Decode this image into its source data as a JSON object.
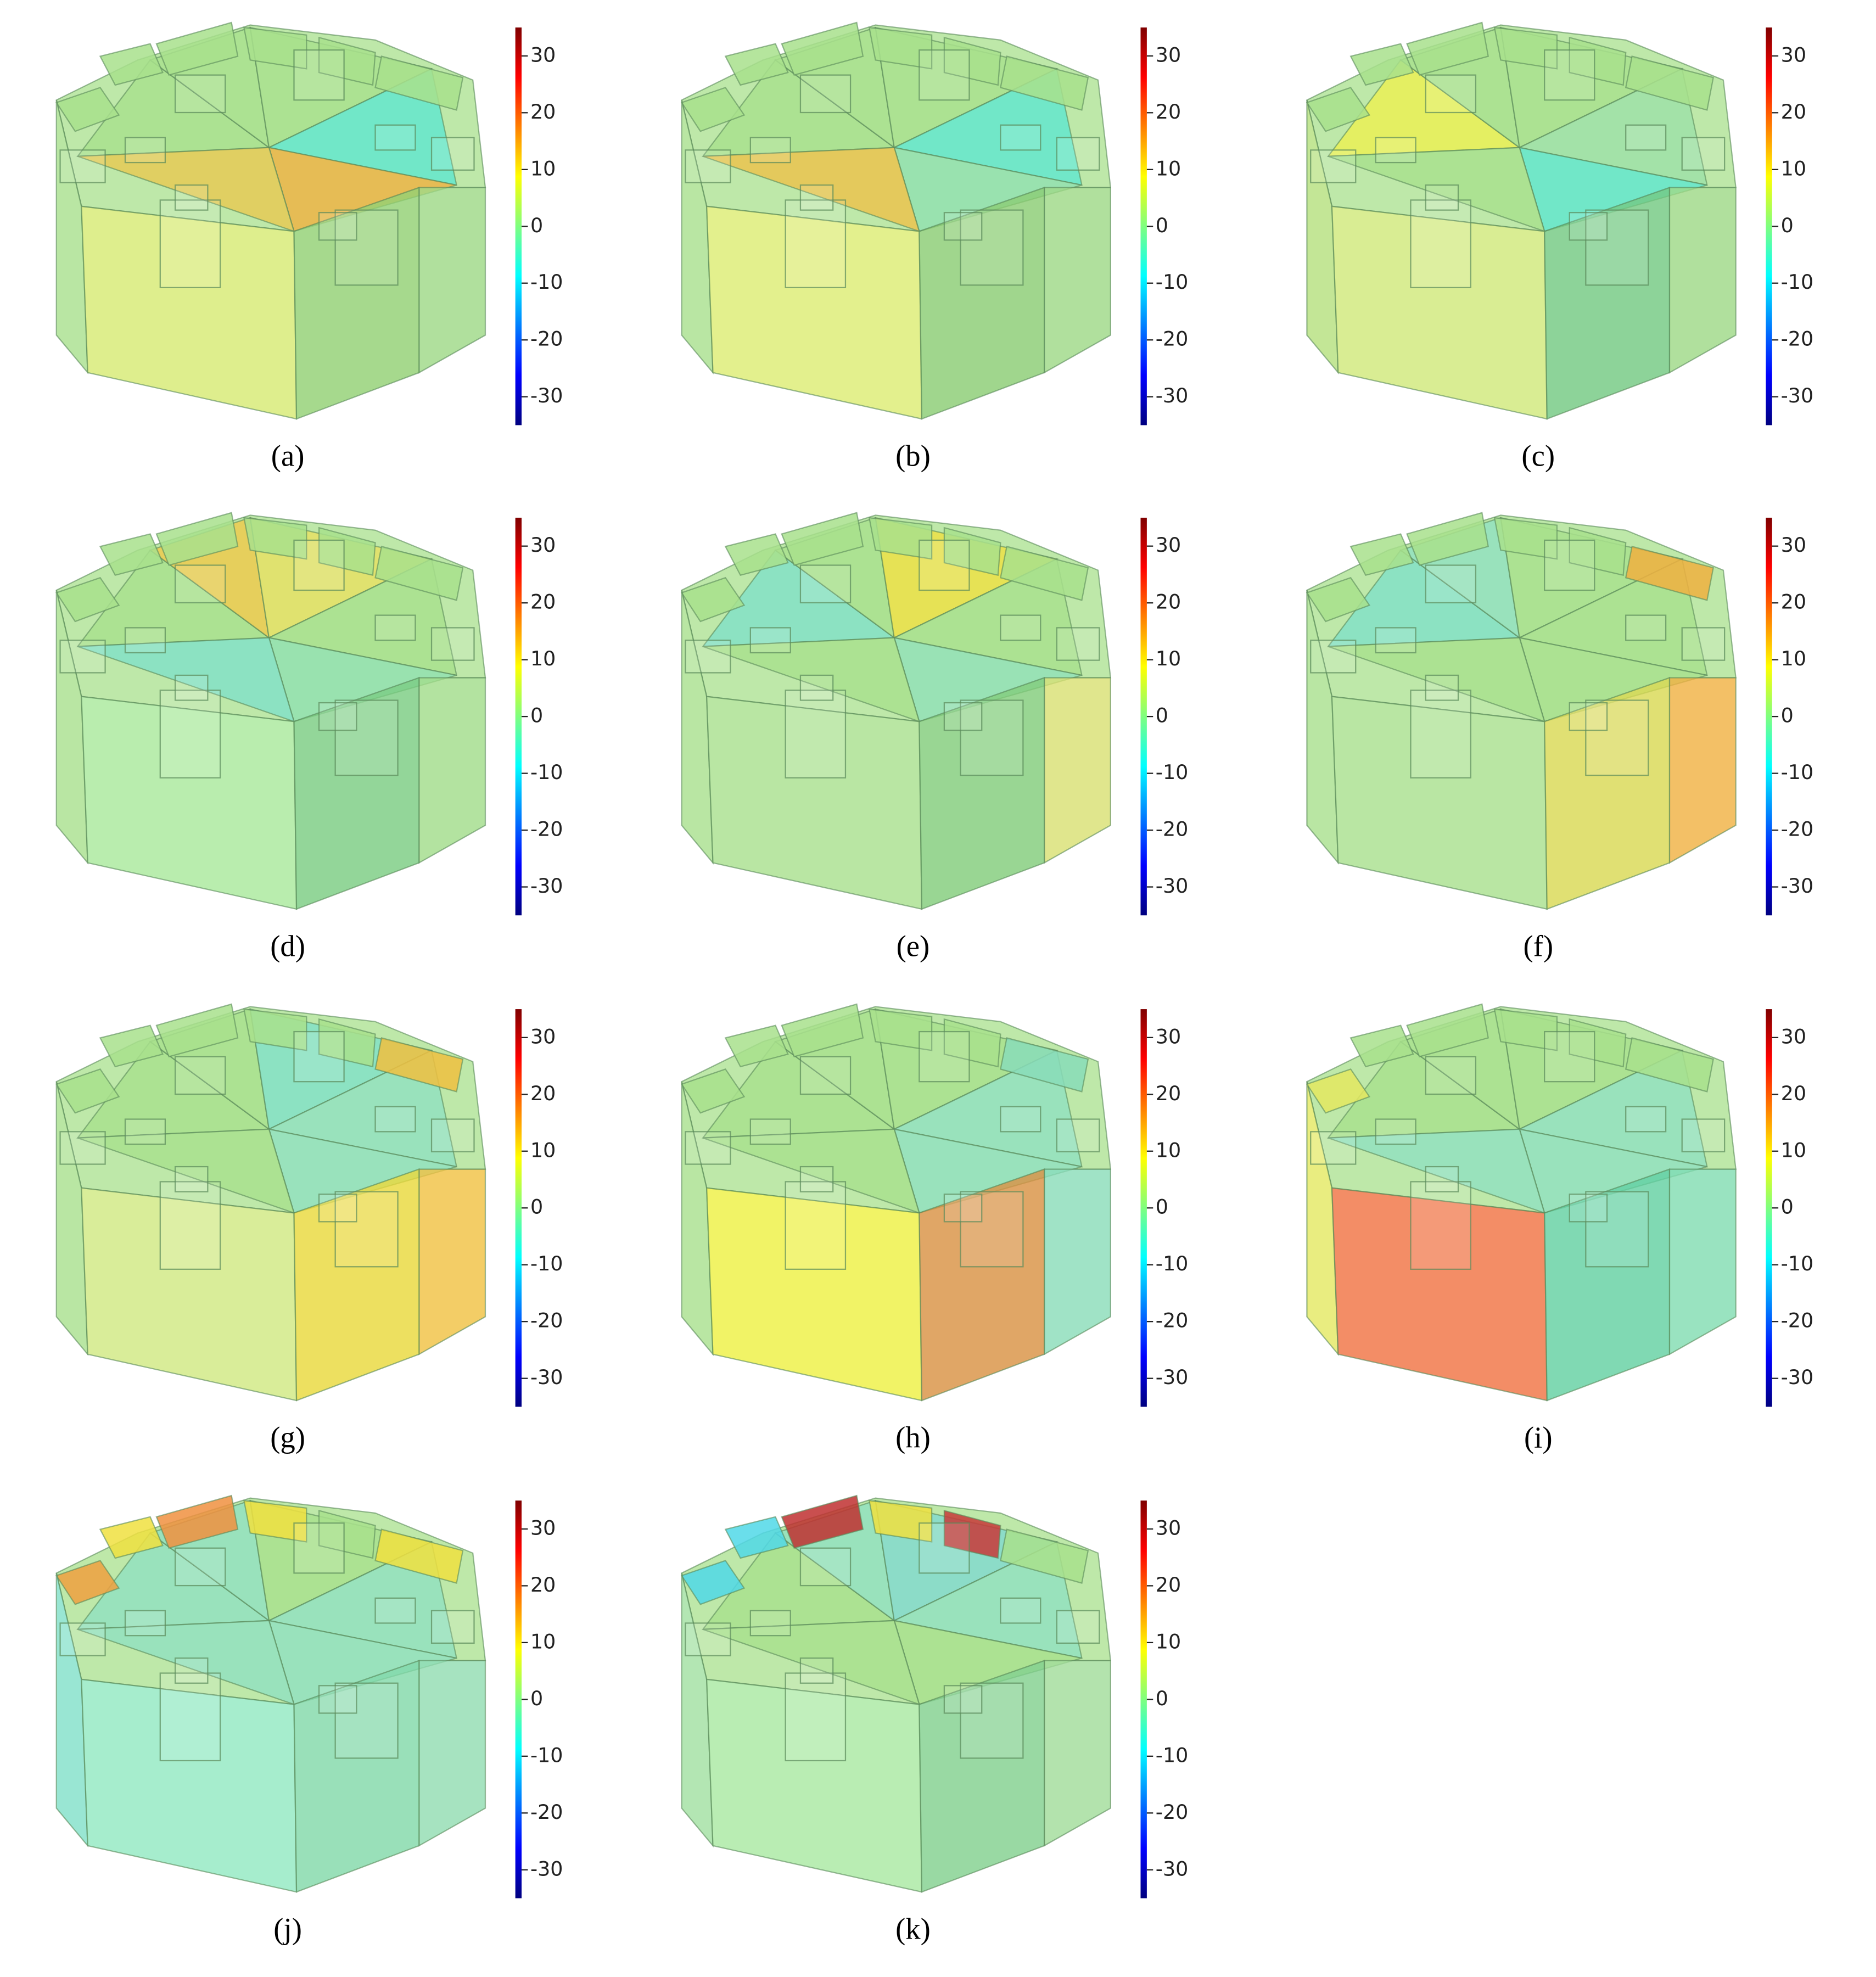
{
  "figure": {
    "colorbar": {
      "lim": [
        -35,
        35
      ],
      "ticks": [
        30,
        20,
        10,
        0,
        -10,
        -20,
        -30
      ],
      "colors": [
        "#00007f",
        "#0000ff",
        "#007fff",
        "#00ffff",
        "#7fff7f",
        "#ffff00",
        "#ff7f00",
        "#ff0000",
        "#7f0000"
      ]
    },
    "base_color": "#a8e08c",
    "panels": [
      {
        "label": "(a)",
        "faces": {
          "front_left": "#d6ea70",
          "front_right": "#90cf70",
          "left": "#a8e08c",
          "right": "#9cd884",
          "sectors": [
            "#a8e08c",
            "#a8e08c",
            "#a8e08c",
            "#5ee6d0",
            "#f0b040",
            "#e8c850"
          ],
          "rim": [
            "#a8e08c",
            "#a8e08c",
            "#a8e08c",
            "#a8e08c",
            "#a8e08c",
            "#a8e08c"
          ]
        }
      },
      {
        "label": "(b)",
        "faces": {
          "front_left": "#dcec70",
          "front_right": "#88cc70",
          "left": "#a8e08c",
          "right": "#9cd884",
          "sectors": [
            "#a8e08c",
            "#a8e08c",
            "#a8e08c",
            "#5ee6d0",
            "#90e0b0",
            "#eec048"
          ],
          "rim": [
            "#a8e08c",
            "#a8e08c",
            "#a8e08c",
            "#a8e08c",
            "#a8e08c",
            "#a8e08c"
          ]
        }
      },
      {
        "label": "(c)",
        "faces": {
          "front_left": "#d0e878",
          "front_right": "#70c880",
          "left": "#b4e07c",
          "right": "#9cd884",
          "sectors": [
            "#eef050",
            "#a8e08c",
            "#a8e08c",
            "#9ce0a8",
            "#5ee6d0",
            "#a8e08c"
          ],
          "rim": [
            "#a8e08c",
            "#a8e08c",
            "#a8e08c",
            "#a8e08c",
            "#a8e08c",
            "#a8e08c"
          ]
        }
      },
      {
        "label": "(d)",
        "faces": {
          "front_left": "#a8e89a",
          "front_right": "#78cc80",
          "left": "#a8e08c",
          "right": "#a0dc88",
          "sectors": [
            "#a8e08c",
            "#f0c848",
            "#e8e060",
            "#a8e08c",
            "#90e0b0",
            "#80e0c8"
          ],
          "rim": [
            "#a8e08c",
            "#a8e08c",
            "#a8e08c",
            "#a8e08c",
            "#a8e08c",
            "#a8e08c"
          ]
        }
      },
      {
        "label": "(e)",
        "faces": {
          "front_left": "#a8e08c",
          "front_right": "#80cc78",
          "left": "#a8e08c",
          "right": "#d8e070",
          "sectors": [
            "#80e0c8",
            "#a8e08c",
            "#f0e040",
            "#a8e08c",
            "#90e0b8",
            "#a8e08c"
          ],
          "rim": [
            "#a8e08c",
            "#a8e08c",
            "#a8e08c",
            "#a8e08c",
            "#a8e08c",
            "#a8e08c"
          ]
        }
      },
      {
        "label": "(f)",
        "faces": {
          "front_left": "#a8e08c",
          "front_right": "#d8d850",
          "left": "#a8e08c",
          "right": "#f0b040",
          "sectors": [
            "#80e0c8",
            "#90e0c0",
            "#a8e08c",
            "#a8e08c",
            "#a8e08c",
            "#a8e08c"
          ],
          "rim": [
            "#a8e08c",
            "#a8e08c",
            "#a8e08c",
            "#a8e08c",
            "#a8e08c",
            "#f0b040"
          ]
        }
      },
      {
        "label": "(g)",
        "faces": {
          "front_left": "#d0e880",
          "front_right": "#e8d838",
          "left": "#a8e08c",
          "right": "#f0c040",
          "sectors": [
            "#a8e08c",
            "#a8e08c",
            "#80e0c8",
            "#90e0c0",
            "#90e0c0",
            "#a8e08c"
          ],
          "rim": [
            "#a8e08c",
            "#a8e08c",
            "#a8e08c",
            "#a8e08c",
            "#a8e08c",
            "#f0c040"
          ]
        }
      },
      {
        "label": "(h)",
        "faces": {
          "front_left": "#eef040",
          "front_right": "#d89040",
          "left": "#a8e08c",
          "right": "#88dcb8",
          "sectors": [
            "#a8e08c",
            "#a8e08c",
            "#a8e08c",
            "#90e0c0",
            "#90e0c0",
            "#a8e08c"
          ],
          "rim": [
            "#a8e08c",
            "#a8e08c",
            "#a8e08c",
            "#a8e08c",
            "#a8e08c",
            "#88dcb8"
          ]
        }
      },
      {
        "label": "(i)",
        "faces": {
          "front_left": "#f07040",
          "front_right": "#60d0a0",
          "left": "#e4e860",
          "right": "#80dcb0",
          "sectors": [
            "#a8e08c",
            "#a8e08c",
            "#a8e08c",
            "#90e0c0",
            "#90e0c0",
            "#90e0c0"
          ],
          "rim": [
            "#e4e860",
            "#a8e08c",
            "#a8e08c",
            "#a8e08c",
            "#a8e08c",
            "#a8e08c"
          ]
        }
      },
      {
        "label": "(j)",
        "faces": {
          "front_left": "#90e8c0",
          "front_right": "#80d8a8",
          "left": "#80e0c8",
          "right": "#90dcb0",
          "sectors": [
            "#90e0c0",
            "#90e0c0",
            "#a8e08c",
            "#90e0c0",
            "#90e0c0",
            "#90e0c0"
          ],
          "rim": [
            "#f0a040",
            "#f0e040",
            "#f09040",
            "#f0e040",
            "#a8e08c",
            "#f0e040"
          ]
        }
      },
      {
        "label": "(k)",
        "faces": {
          "front_left": "#a8e8a0",
          "front_right": "#80d08c",
          "left": "#a0e0a0",
          "right": "#a0dc98",
          "sectors": [
            "#a8e08c",
            "#90e0c0",
            "#80d8d0",
            "#90e0c0",
            "#a8e08c",
            "#a8e08c"
          ],
          "rim": [
            "#50d8e8",
            "#50d8e8",
            "#c03030",
            "#f0e040",
            "#c83838",
            "#a8e08c"
          ]
        }
      }
    ]
  }
}
